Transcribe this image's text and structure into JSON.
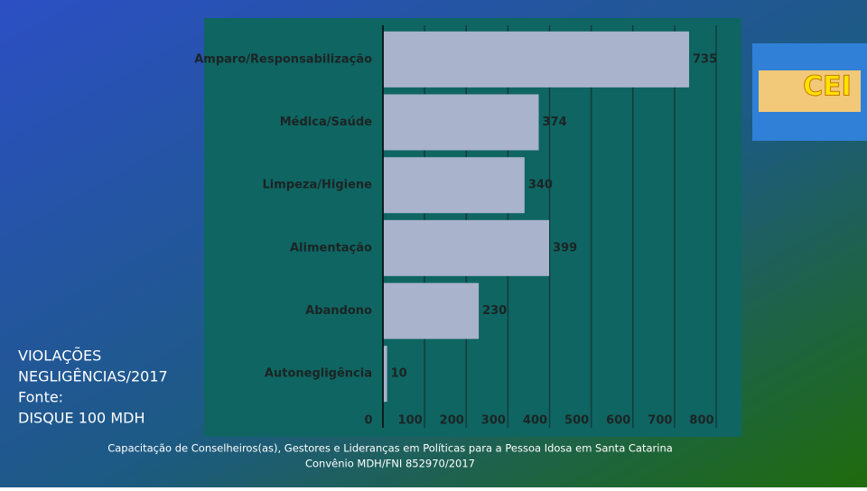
{
  "chart_data": {
    "type": "bar",
    "orientation": "horizontal",
    "categories": [
      "Amparo/Responsabilização",
      "Médica/Saúde",
      "Limpeza/Higiene",
      "Alimentação",
      "Abandono",
      "Autonegligência"
    ],
    "values": [
      735,
      374,
      340,
      399,
      230,
      10
    ],
    "color": "#a9b3cb",
    "xlim": [
      0,
      800
    ],
    "xticks": [
      0,
      100,
      200,
      300,
      400,
      500,
      600,
      700,
      800
    ],
    "grid": true
  },
  "side_text": [
    "VIOLAÇÕES",
    "NEGLIGÊNCIAS/2017",
    "Fonte:",
    "DISQUE 100 MDH"
  ],
  "footer": [
    "Capacitação de Conselheiros(as), Gestores e Lideranças em Políticas para a Pessoa Idosa em Santa Catarina",
    "Convênio MDH/FNI 852970/2017"
  ],
  "logo": "CEI"
}
